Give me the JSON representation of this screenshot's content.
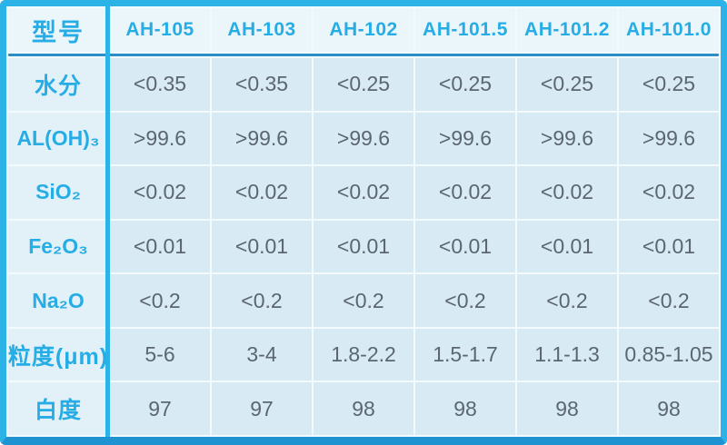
{
  "colors": {
    "border_cyan": "#2bb3e7",
    "border_bottom": "#1f93d2",
    "header_underline": "#2e8fc6",
    "header_bg": "#ebf6fb",
    "cell_bg": "#d8ebf5",
    "label_bg": "#e2f1f8",
    "gridline": "#f3fafd",
    "accent_text": "#26ade5",
    "value_text": "#5c6670"
  },
  "table": {
    "corner_label": "型号",
    "columns": [
      "AH-105",
      "AH-103",
      "AH-102",
      "AH-101.5",
      "AH-101.2",
      "AH-101.0"
    ],
    "rows": [
      {
        "label": "水分",
        "cjk": true,
        "values": [
          "<0.35",
          "<0.35",
          "<0.25",
          "<0.25",
          "<0.25",
          "<0.25"
        ]
      },
      {
        "label": "AL(OH)₃",
        "cjk": false,
        "values": [
          ">99.6",
          ">99.6",
          ">99.6",
          ">99.6",
          ">99.6",
          ">99.6"
        ]
      },
      {
        "label": "SiO₂",
        "cjk": false,
        "values": [
          "<0.02",
          "<0.02",
          "<0.02",
          "<0.02",
          "<0.02",
          "<0.02"
        ]
      },
      {
        "label": "Fe₂O₃",
        "cjk": false,
        "values": [
          "<0.01",
          "<0.01",
          "<0.01",
          "<0.01",
          "<0.01",
          "<0.01"
        ]
      },
      {
        "label": "Na₂O",
        "cjk": false,
        "values": [
          "<0.2",
          "<0.2",
          "<0.2",
          "<0.2",
          "<0.2",
          "<0.2"
        ]
      },
      {
        "label": "粒度(μm)",
        "cjk": true,
        "values": [
          "5-6",
          "3-4",
          "1.8-2.2",
          "1.5-1.7",
          "1.1-1.3",
          "0.85-1.05"
        ]
      },
      {
        "label": "白度",
        "cjk": true,
        "values": [
          "97",
          "97",
          "98",
          "98",
          "98",
          "98"
        ]
      }
    ]
  }
}
